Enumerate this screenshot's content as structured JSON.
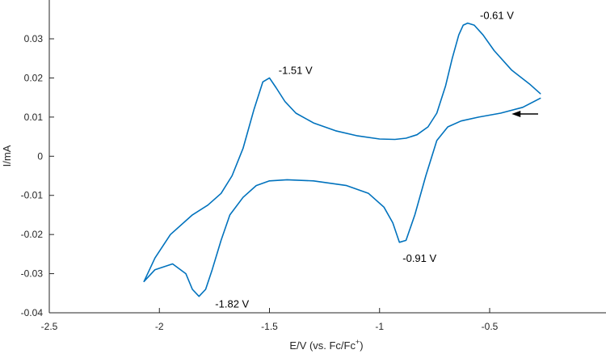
{
  "chart_data": {
    "type": "line",
    "xlabel": "E/V (vs. Fc/Fc",
    "xlabel_sup": "+",
    "xlabel_end": ")",
    "ylabel": "I/mA",
    "xlim": [
      -2.5,
      0.0
    ],
    "ylim": [
      -0.04,
      0.04
    ],
    "x_ticks": [
      -2.5,
      -2,
      -1.5,
      -1,
      -0.5
    ],
    "x_tick_labels": [
      "-2.5",
      "-2",
      "-1.5",
      "-1",
      "-0.5"
    ],
    "y_ticks": [
      -0.04,
      -0.03,
      -0.02,
      -0.01,
      0,
      0.01,
      0.02,
      0.03
    ],
    "y_tick_labels": [
      "-0.04",
      "-0.03",
      "-0.02",
      "-0.01",
      "0",
      "0.01",
      "0.02",
      "0.03"
    ],
    "grid": false,
    "series_color": "#0072BD",
    "series": [
      {
        "x": [
          -0.27,
          -0.32,
          -0.4,
          -0.48,
          -0.53,
          -0.57,
          -0.6,
          -0.62,
          -0.64,
          -0.67,
          -0.7,
          -0.74,
          -0.78,
          -0.83,
          -0.88,
          -0.93,
          -1.0,
          -1.1,
          -1.2,
          -1.3,
          -1.38,
          -1.43,
          -1.47,
          -1.5,
          -1.53,
          -1.57,
          -1.62,
          -1.67,
          -1.72,
          -1.78,
          -1.85,
          -1.95,
          -2.02,
          -2.07,
          -2.02,
          -1.94,
          -1.88,
          -1.85,
          -1.82,
          -1.79,
          -1.76,
          -1.72,
          -1.68,
          -1.62,
          -1.56,
          -1.5,
          -1.42,
          -1.3,
          -1.15,
          -1.05,
          -0.98,
          -0.94,
          -0.91,
          -0.88,
          -0.84,
          -0.79,
          -0.74,
          -0.69,
          -0.63,
          -0.55,
          -0.45,
          -0.35,
          -0.27
        ],
        "y": [
          0.016,
          0.0185,
          0.022,
          0.027,
          0.031,
          0.0335,
          0.034,
          0.0335,
          0.031,
          0.025,
          0.018,
          0.011,
          0.0075,
          0.0055,
          0.0046,
          0.0043,
          0.0044,
          0.0052,
          0.0065,
          0.0085,
          0.011,
          0.014,
          0.0175,
          0.02,
          0.019,
          0.012,
          0.002,
          -0.005,
          -0.0095,
          -0.0125,
          -0.015,
          -0.02,
          -0.026,
          -0.032,
          -0.029,
          -0.0275,
          -0.03,
          -0.034,
          -0.0358,
          -0.034,
          -0.029,
          -0.0215,
          -0.015,
          -0.0105,
          -0.0075,
          -0.0063,
          -0.006,
          -0.0063,
          -0.0075,
          -0.0095,
          -0.013,
          -0.017,
          -0.022,
          -0.0215,
          -0.015,
          -0.005,
          0.004,
          0.0075,
          0.009,
          0.01,
          0.011,
          0.0125,
          0.0148
        ]
      }
    ],
    "annotations": [
      {
        "text": "-0.61 V",
        "x": -0.61,
        "y": 0.034
      },
      {
        "text": "-1.51 V",
        "x": -1.51,
        "y": 0.02
      },
      {
        "text": "-0.91 V",
        "x": -0.91,
        "y": -0.022
      },
      {
        "text": "-1.82 V",
        "x": -1.82,
        "y": -0.0358
      }
    ],
    "arrow": {
      "direction": "left",
      "x_from": -0.28,
      "x_to": -0.4,
      "y": 0.0108
    }
  }
}
